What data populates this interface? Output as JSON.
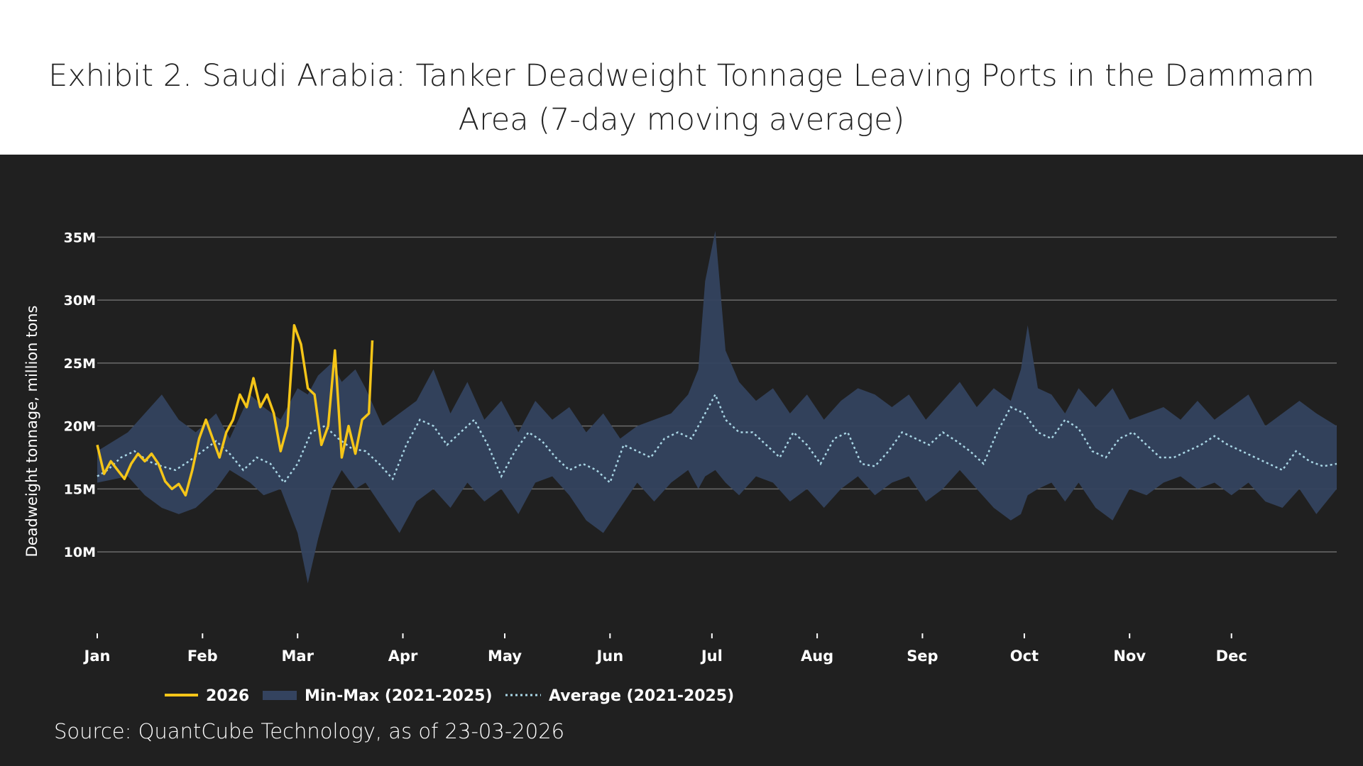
{
  "header": {
    "title": "Exhibit 2. Saudi Arabia: Tanker Deadweight Tonnage Leaving Ports in the Dammam Area (7-day moving average)"
  },
  "footer": {
    "source": "Source: QuantCube Technology, as of 23-03-2026"
  },
  "colors": {
    "panel_bg": "#202020",
    "grid": "#6b6b6b",
    "series_2026": "#F5C518",
    "band": "#34435F",
    "average": "#A9D6E5"
  },
  "chart_data": {
    "type": "line",
    "title": "Exhibit 2. Saudi Arabia: Tanker Deadweight Tonnage Leaving Ports in the Dammam Area (7-day moving average)",
    "xlabel": "",
    "ylabel": "Deadweight tonnage, million tons",
    "x_unit": "day of year",
    "xlim": [
      1,
      366
    ],
    "ylim": [
      5.5,
      37.5
    ],
    "y_ticks": [
      10,
      15,
      20,
      25,
      30,
      35
    ],
    "y_tick_labels": [
      "10M",
      "15M",
      "20M",
      "25M",
      "30M",
      "35M"
    ],
    "x_ticks": [
      1,
      32,
      60,
      91,
      121,
      152,
      182,
      213,
      244,
      274,
      305,
      335
    ],
    "x_tick_labels": [
      "Jan",
      "Feb",
      "Mar",
      "Apr",
      "May",
      "Jun",
      "Jul",
      "Aug",
      "Sep",
      "Oct",
      "Nov",
      "Dec"
    ],
    "grid": true,
    "legend_position": "bottom",
    "legend": [
      "2026",
      "Min-Max (2021-2025)",
      "Average (2021-2025)"
    ],
    "series": [
      {
        "name": "2026",
        "style": "solid",
        "x": [
          1,
          3,
          5,
          7,
          9,
          11,
          13,
          15,
          17,
          19,
          21,
          23,
          25,
          27,
          29,
          31,
          33,
          35,
          37,
          39,
          41,
          43,
          45,
          47,
          49,
          51,
          53,
          55,
          57,
          59,
          61,
          63,
          65,
          67,
          69,
          71,
          73,
          75,
          77,
          79,
          81,
          82
        ],
        "values": [
          18.5,
          16.2,
          17.2,
          16.5,
          15.8,
          17.0,
          17.8,
          17.2,
          17.8,
          17.0,
          15.6,
          15.0,
          15.4,
          14.5,
          16.5,
          19.0,
          20.5,
          19.0,
          17.5,
          19.5,
          20.5,
          22.5,
          21.5,
          23.8,
          21.5,
          22.5,
          21.0,
          18.0,
          20.0,
          28.0,
          26.5,
          23.0,
          22.5,
          18.5,
          20.0,
          26.0,
          17.5,
          20.0,
          17.8,
          20.5,
          21.0,
          26.8
        ]
      },
      {
        "name": "Min-Max (2021-2025) upper",
        "style": "band-upper",
        "x": [
          1,
          10,
          15,
          20,
          25,
          30,
          36,
          40,
          46,
          50,
          55,
          60,
          63,
          66,
          70,
          73,
          77,
          80,
          85,
          90,
          95,
          100,
          105,
          110,
          115,
          120,
          125,
          130,
          135,
          140,
          145,
          150,
          155,
          160,
          165,
          170,
          175,
          178,
          180,
          183,
          186,
          190,
          195,
          200,
          205,
          210,
          215,
          220,
          225,
          230,
          235,
          240,
          245,
          250,
          255,
          260,
          265,
          270,
          273,
          275,
          278,
          282,
          286,
          290,
          295,
          300,
          305,
          310,
          315,
          320,
          325,
          330,
          335,
          340,
          345,
          350,
          355,
          360,
          366
        ],
        "values": [
          18.0,
          19.5,
          21.0,
          22.5,
          20.5,
          19.5,
          21.0,
          19.0,
          22.5,
          21.5,
          20.5,
          23.0,
          22.5,
          24.0,
          25.0,
          23.5,
          24.5,
          23.0,
          20.0,
          21.0,
          22.0,
          24.5,
          21.0,
          23.5,
          20.5,
          22.0,
          19.5,
          22.0,
          20.5,
          21.5,
          19.5,
          21.0,
          19.0,
          20.0,
          20.5,
          21.0,
          22.5,
          24.5,
          31.5,
          35.5,
          26.0,
          23.5,
          22.0,
          23.0,
          21.0,
          22.5,
          20.5,
          22.0,
          23.0,
          22.5,
          21.5,
          22.5,
          20.5,
          22.0,
          23.5,
          21.5,
          23.0,
          22.0,
          24.5,
          28.0,
          23.0,
          22.5,
          21.0,
          23.0,
          21.5,
          23.0,
          20.5,
          21.0,
          21.5,
          20.5,
          22.0,
          20.5,
          21.5,
          22.5,
          20.0,
          21.0,
          22.0,
          21.0,
          20.0
        ]
      },
      {
        "name": "Min-Max (2021-2025) lower",
        "style": "band-lower",
        "x": [
          1,
          10,
          15,
          20,
          25,
          30,
          36,
          40,
          46,
          50,
          55,
          60,
          63,
          66,
          70,
          73,
          77,
          80,
          85,
          90,
          95,
          100,
          105,
          110,
          115,
          120,
          125,
          130,
          135,
          140,
          145,
          150,
          155,
          160,
          165,
          170,
          175,
          178,
          180,
          183,
          186,
          190,
          195,
          200,
          205,
          210,
          215,
          220,
          225,
          230,
          235,
          240,
          245,
          250,
          255,
          260,
          265,
          270,
          273,
          275,
          278,
          282,
          286,
          290,
          295,
          300,
          305,
          310,
          315,
          320,
          325,
          330,
          335,
          340,
          345,
          350,
          355,
          360,
          366
        ],
        "values": [
          15.5,
          16.0,
          14.5,
          13.5,
          13.0,
          13.5,
          15.0,
          16.5,
          15.5,
          14.5,
          15.0,
          11.5,
          7.5,
          11.0,
          15.0,
          16.5,
          15.0,
          15.5,
          13.5,
          11.5,
          14.0,
          15.0,
          13.5,
          15.5,
          14.0,
          15.0,
          13.0,
          15.5,
          16.0,
          14.5,
          12.5,
          11.5,
          13.5,
          15.5,
          14.0,
          15.5,
          16.5,
          15.0,
          16.0,
          16.5,
          15.5,
          14.5,
          16.0,
          15.5,
          14.0,
          15.0,
          13.5,
          15.0,
          16.0,
          14.5,
          15.5,
          16.0,
          14.0,
          15.0,
          16.5,
          15.0,
          13.5,
          12.5,
          13.0,
          14.5,
          15.0,
          15.5,
          14.0,
          15.5,
          13.5,
          12.5,
          15.0,
          14.5,
          15.5,
          16.0,
          15.0,
          15.5,
          14.5,
          15.5,
          14.0,
          13.5,
          15.0,
          13.0,
          15.0
        ]
      },
      {
        "name": "Average (2021-2025)",
        "style": "dotted",
        "x": [
          1,
          4,
          8,
          12,
          16,
          20,
          24,
          28,
          32,
          36,
          40,
          44,
          48,
          52,
          56,
          60,
          64,
          68,
          72,
          76,
          80,
          84,
          88,
          92,
          96,
          100,
          104,
          108,
          112,
          116,
          120,
          124,
          128,
          132,
          136,
          140,
          144,
          148,
          152,
          156,
          160,
          164,
          168,
          172,
          176,
          180,
          183,
          186,
          190,
          194,
          198,
          202,
          206,
          210,
          214,
          218,
          222,
          226,
          230,
          234,
          238,
          242,
          246,
          250,
          254,
          258,
          262,
          266,
          270,
          274,
          278,
          282,
          286,
          290,
          294,
          298,
          302,
          306,
          310,
          314,
          318,
          322,
          326,
          330,
          334,
          338,
          342,
          346,
          350,
          354,
          358,
          362,
          366
        ],
        "values": [
          16.0,
          16.5,
          17.5,
          18.0,
          17.2,
          16.8,
          16.5,
          17.2,
          18.0,
          18.8,
          17.8,
          16.5,
          17.5,
          17.0,
          15.5,
          17.0,
          19.5,
          20.0,
          19.0,
          18.2,
          18.0,
          17.0,
          15.8,
          18.5,
          20.5,
          20.0,
          18.5,
          19.5,
          20.5,
          18.5,
          16.0,
          18.0,
          19.5,
          18.8,
          17.5,
          16.5,
          17.0,
          16.5,
          15.5,
          18.5,
          18.0,
          17.5,
          19.0,
          19.5,
          19.0,
          21.0,
          22.5,
          20.5,
          19.5,
          19.5,
          18.5,
          17.5,
          19.5,
          18.5,
          17.0,
          19.0,
          19.5,
          17.0,
          16.8,
          18.0,
          19.5,
          19.0,
          18.5,
          19.5,
          18.8,
          18.0,
          17.0,
          19.5,
          21.5,
          21.0,
          19.5,
          19.0,
          20.5,
          19.8,
          18.0,
          17.5,
          19.0,
          19.5,
          18.5,
          17.5,
          17.5,
          18.0,
          18.5,
          19.2,
          18.5,
          18.0,
          17.5,
          17.0,
          16.5,
          18.0,
          17.2,
          16.8,
          17.0
        ]
      }
    ]
  }
}
